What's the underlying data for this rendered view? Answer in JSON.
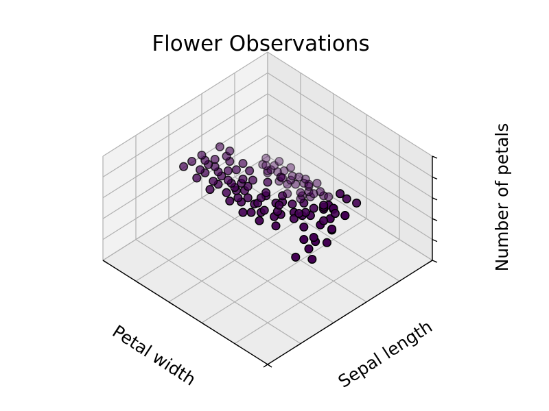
{
  "chart_data": {
    "type": "scatter",
    "projection": "3d",
    "title": "Flower Observations",
    "xlabel": "Petal width",
    "ylabel": "Sepal length",
    "zlabel": "Number of petals",
    "grid": true,
    "marker_color": "#440154",
    "edge_color": "#000000",
    "pane_color": "#f2f2f2",
    "grid_color": "#b0b0b0",
    "series": [
      {
        "points": [
          [
            0.04,
            0.33,
            0.81
          ],
          [
            0.05,
            0.27,
            0.88
          ],
          [
            0.02,
            0.38,
            0.77
          ],
          [
            0.06,
            0.31,
            0.74
          ],
          [
            0.03,
            0.42,
            0.84
          ],
          [
            0.07,
            0.35,
            0.8
          ],
          [
            0.05,
            0.22,
            0.76
          ],
          [
            0.08,
            0.4,
            0.86
          ],
          [
            0.02,
            0.29,
            0.7
          ],
          [
            0.06,
            0.45,
            0.79
          ],
          [
            0.1,
            0.48,
            0.82
          ],
          [
            0.12,
            0.52,
            0.85
          ],
          [
            0.09,
            0.56,
            0.78
          ],
          [
            0.13,
            0.5,
            0.9
          ],
          [
            0.11,
            0.58,
            0.74
          ],
          [
            0.14,
            0.62,
            0.83
          ],
          [
            0.1,
            0.44,
            0.95
          ],
          [
            0.15,
            0.55,
            0.8
          ],
          [
            0.12,
            0.66,
            0.77
          ],
          [
            0.16,
            0.6,
            0.88
          ],
          [
            0.2,
            0.42,
            0.7
          ],
          [
            0.22,
            0.48,
            0.73
          ],
          [
            0.18,
            0.52,
            0.68
          ],
          [
            0.25,
            0.46,
            0.72
          ],
          [
            0.21,
            0.55,
            0.75
          ],
          [
            0.27,
            0.5,
            0.69
          ],
          [
            0.24,
            0.58,
            0.71
          ],
          [
            0.28,
            0.44,
            0.74
          ],
          [
            0.19,
            0.6,
            0.66
          ],
          [
            0.26,
            0.54,
            0.7
          ],
          [
            0.3,
            0.35,
            0.68
          ],
          [
            0.32,
            0.4,
            0.72
          ],
          [
            0.29,
            0.45,
            0.66
          ],
          [
            0.34,
            0.38,
            0.7
          ],
          [
            0.31,
            0.5,
            0.64
          ],
          [
            0.36,
            0.42,
            0.69
          ],
          [
            0.33,
            0.55,
            0.67
          ],
          [
            0.38,
            0.47,
            0.71
          ],
          [
            0.35,
            0.3,
            0.73
          ],
          [
            0.37,
            0.52,
            0.65
          ],
          [
            0.4,
            0.36,
            0.7
          ],
          [
            0.42,
            0.4,
            0.66
          ],
          [
            0.39,
            0.44,
            0.72
          ],
          [
            0.44,
            0.34,
            0.68
          ],
          [
            0.41,
            0.48,
            0.64
          ],
          [
            0.46,
            0.38,
            0.7
          ],
          [
            0.43,
            0.52,
            0.67
          ],
          [
            0.48,
            0.42,
            0.65
          ],
          [
            0.45,
            0.3,
            0.71
          ],
          [
            0.47,
            0.46,
            0.69
          ],
          [
            0.5,
            0.34,
            0.72
          ],
          [
            0.52,
            0.4,
            0.68
          ],
          [
            0.49,
            0.45,
            0.66
          ],
          [
            0.54,
            0.36,
            0.7
          ],
          [
            0.51,
            0.5,
            0.64
          ],
          [
            0.56,
            0.42,
            0.69
          ],
          [
            0.53,
            0.3,
            0.74
          ],
          [
            0.58,
            0.46,
            0.67
          ],
          [
            0.55,
            0.55,
            0.65
          ],
          [
            0.57,
            0.38,
            0.72
          ],
          [
            0.6,
            0.4,
            0.7
          ],
          [
            0.62,
            0.46,
            0.66
          ],
          [
            0.59,
            0.34,
            0.72
          ],
          [
            0.64,
            0.42,
            0.68
          ],
          [
            0.61,
            0.52,
            0.64
          ],
          [
            0.66,
            0.36,
            0.71
          ],
          [
            0.63,
            0.48,
            0.67
          ],
          [
            0.68,
            0.44,
            0.65
          ],
          [
            0.65,
            0.3,
            0.73
          ],
          [
            0.67,
            0.56,
            0.63
          ],
          [
            0.7,
            0.42,
            0.69
          ],
          [
            0.72,
            0.48,
            0.66
          ],
          [
            0.69,
            0.36,
            0.71
          ],
          [
            0.74,
            0.44,
            0.67
          ],
          [
            0.71,
            0.52,
            0.64
          ],
          [
            0.76,
            0.38,
            0.7
          ],
          [
            0.73,
            0.58,
            0.62
          ],
          [
            0.78,
            0.46,
            0.66
          ],
          [
            0.75,
            0.32,
            0.72
          ],
          [
            0.77,
            0.54,
            0.64
          ],
          [
            0.8,
            0.44,
            0.68
          ],
          [
            0.82,
            0.5,
            0.65
          ],
          [
            0.79,
            0.38,
            0.7
          ],
          [
            0.84,
            0.46,
            0.66
          ],
          [
            0.81,
            0.56,
            0.63
          ],
          [
            0.86,
            0.4,
            0.69
          ],
          [
            0.83,
            0.6,
            0.62
          ],
          [
            0.88,
            0.48,
            0.65
          ],
          [
            0.85,
            0.34,
            0.71
          ],
          [
            0.87,
            0.58,
            0.64
          ],
          [
            0.7,
            0.9,
            0.05
          ],
          [
            0.72,
            0.94,
            0.08
          ],
          [
            0.68,
            0.88,
            0.03
          ],
          [
            0.75,
            0.92,
            0.06
          ],
          [
            0.71,
            0.96,
            0.04
          ],
          [
            0.77,
            0.89,
            0.07
          ],
          [
            0.73,
            0.98,
            0.02
          ],
          [
            0.79,
            0.93,
            0.05
          ],
          [
            0.66,
            0.91,
            0.09
          ],
          [
            0.74,
            0.86,
            0.04
          ],
          [
            0.8,
            0.95,
            0.06
          ],
          [
            0.76,
            0.99,
            0.03
          ],
          [
            0.82,
            0.9,
            0.08
          ],
          [
            0.78,
            0.97,
            0.05
          ],
          [
            0.84,
            0.93,
            0.02
          ],
          [
            0.81,
            0.88,
            0.07
          ],
          [
            0.86,
            0.96,
            0.04
          ],
          [
            0.83,
            0.91,
            0.06
          ],
          [
            0.88,
            0.94,
            0.03
          ],
          [
            0.85,
            0.99,
            0.05
          ],
          [
            0.62,
            0.94,
            0.1
          ],
          [
            0.64,
            0.9,
            0.07
          ],
          [
            0.6,
            0.97,
            0.04
          ],
          [
            0.67,
            0.95,
            0.02
          ],
          [
            0.69,
            0.99,
            0.06
          ],
          [
            0.9,
            0.92,
            0.05
          ],
          [
            0.92,
            0.96,
            0.03
          ],
          [
            0.89,
            0.89,
            0.08
          ],
          [
            0.94,
            0.93,
            0.04
          ],
          [
            0.91,
            0.98,
            0.06
          ],
          [
            0.58,
            0.92,
            0.12
          ],
          [
            0.87,
            0.87,
            0.1
          ],
          [
            0.93,
            0.9,
            0.09
          ],
          [
            0.65,
            0.86,
            0.11
          ],
          [
            0.96,
            0.95,
            0.07
          ]
        ]
      }
    ]
  }
}
